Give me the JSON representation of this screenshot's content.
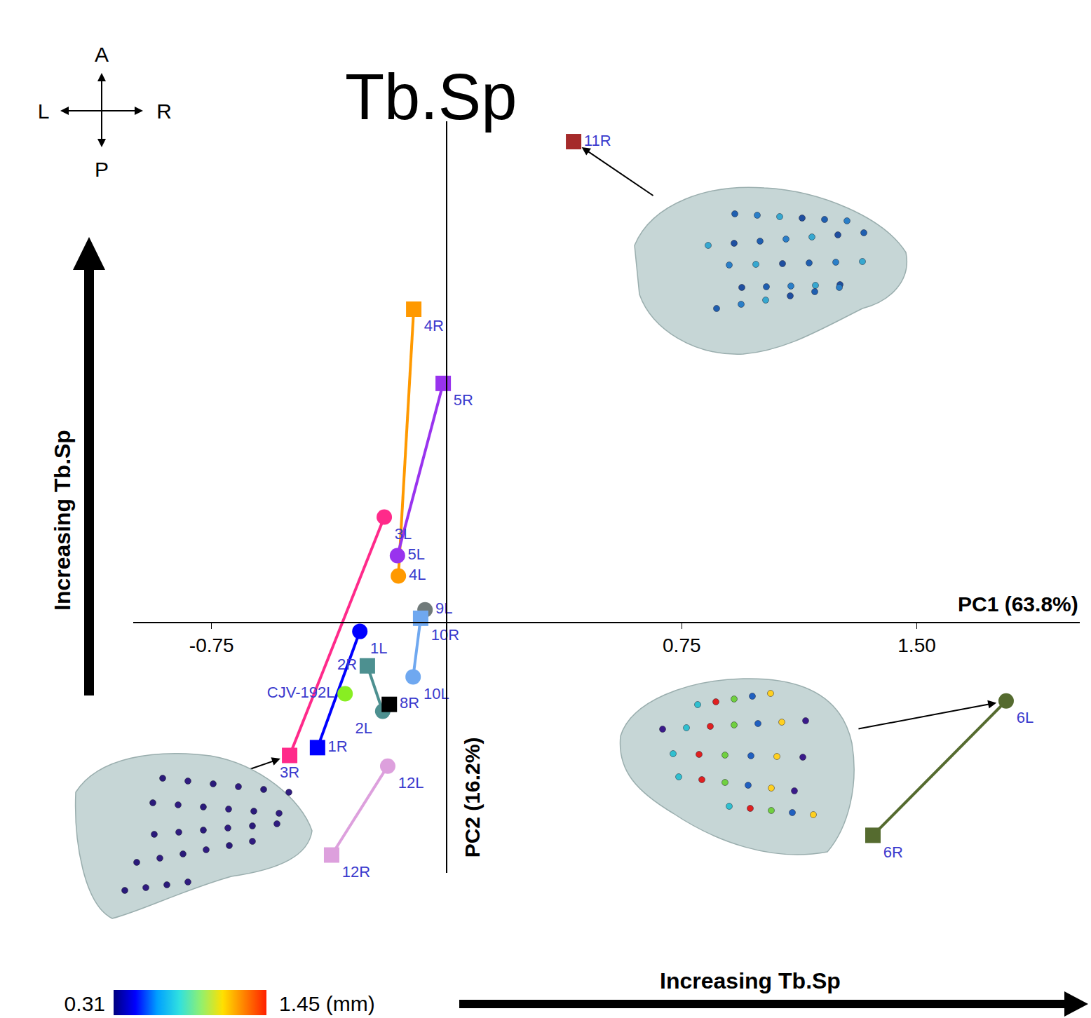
{
  "chart_data": {
    "type": "scatter",
    "title": "Tb.Sp",
    "xlabel": "PC1 (63.8%)",
    "ylabel": "PC2 (16.2%)",
    "x_arrow_label": "Increasing Tb.Sp",
    "y_arrow_label": "Increasing Tb.Sp",
    "xlim": [
      -1.0,
      2.02
    ],
    "ylim": [
      -0.8,
      1.6
    ],
    "xticks": [
      -0.75,
      0.75,
      {
        "value": 1.5,
        "label": "1.50"
      }
    ],
    "tick_labels": "x",
    "grid": false,
    "compass": {
      "up": "A",
      "down": "P",
      "left": "L",
      "right": "R"
    },
    "colorbar_range": [
      0.31,
      1.45
    ],
    "colorbar_ticks": [
      0.31,
      {
        "value": 1.45,
        "label": "1.45 (mm)"
      }
    ],
    "series": [
      {
        "color": "#a52a2a",
        "points": [
          {
            "label": "11R",
            "x": 0.405,
            "y": 1.535,
            "marker": "square"
          }
        ]
      },
      {
        "color": "#ff9900",
        "points": [
          {
            "label": "4R",
            "x": -0.105,
            "y": 1.0,
            "marker": "square"
          },
          {
            "label": "4L",
            "x": -0.154,
            "y": 0.148,
            "marker": "circle"
          }
        ]
      },
      {
        "color": "#9933ee",
        "points": [
          {
            "label": "5R",
            "x": -0.011,
            "y": 0.763,
            "marker": "square"
          },
          {
            "label": "5L",
            "x": -0.157,
            "y": 0.213,
            "marker": "circle"
          }
        ]
      },
      {
        "color": "#ff2a8a",
        "points": [
          {
            "label": "3L",
            "x": -0.199,
            "y": 0.336,
            "marker": "circle"
          },
          {
            "label": "3R",
            "x": -0.501,
            "y": -0.425,
            "marker": "square"
          }
        ]
      },
      {
        "color": "#707a7a",
        "points": [
          {
            "label": "9L",
            "x": -0.069,
            "y": 0.04,
            "marker": "circle"
          }
        ]
      },
      {
        "color": "#6fa8f0",
        "points": [
          {
            "label": "10R",
            "x": -0.083,
            "y": 0.013,
            "marker": "square"
          },
          {
            "label": "10L",
            "x": -0.107,
            "y": -0.174,
            "marker": "circle"
          }
        ]
      },
      {
        "color": "#0000ff",
        "points": [
          {
            "label": "1L",
            "x": -0.277,
            "y": -0.029,
            "marker": "circle"
          },
          {
            "label": "1R",
            "x": -0.412,
            "y": -0.4,
            "marker": "square"
          }
        ]
      },
      {
        "color": "#4d9090",
        "points": [
          {
            "label": "2R",
            "x": -0.253,
            "y": -0.139,
            "marker": "square"
          },
          {
            "label": "2L",
            "x": -0.204,
            "y": -0.284,
            "marker": "circle"
          }
        ]
      },
      {
        "color": "#88ee22",
        "points": [
          {
            "label": "CJV-192L",
            "x": -0.324,
            "y": -0.228,
            "marker": "circle"
          }
        ]
      },
      {
        "color": "#000000",
        "points": [
          {
            "label": "8R",
            "x": -0.183,
            "y": -0.262,
            "marker": "square"
          }
        ]
      },
      {
        "color": "#dda0dd",
        "points": [
          {
            "label": "12L",
            "x": -0.188,
            "y": -0.459,
            "marker": "circle"
          },
          {
            "label": "12R",
            "x": -0.367,
            "y": -0.743,
            "marker": "square"
          }
        ]
      },
      {
        "color": "#556b2f",
        "points": [
          {
            "label": "6L",
            "x": 1.785,
            "y": -0.251,
            "marker": "circle"
          },
          {
            "label": "6R",
            "x": 1.36,
            "y": -0.68,
            "marker": "square"
          }
        ]
      }
    ]
  }
}
